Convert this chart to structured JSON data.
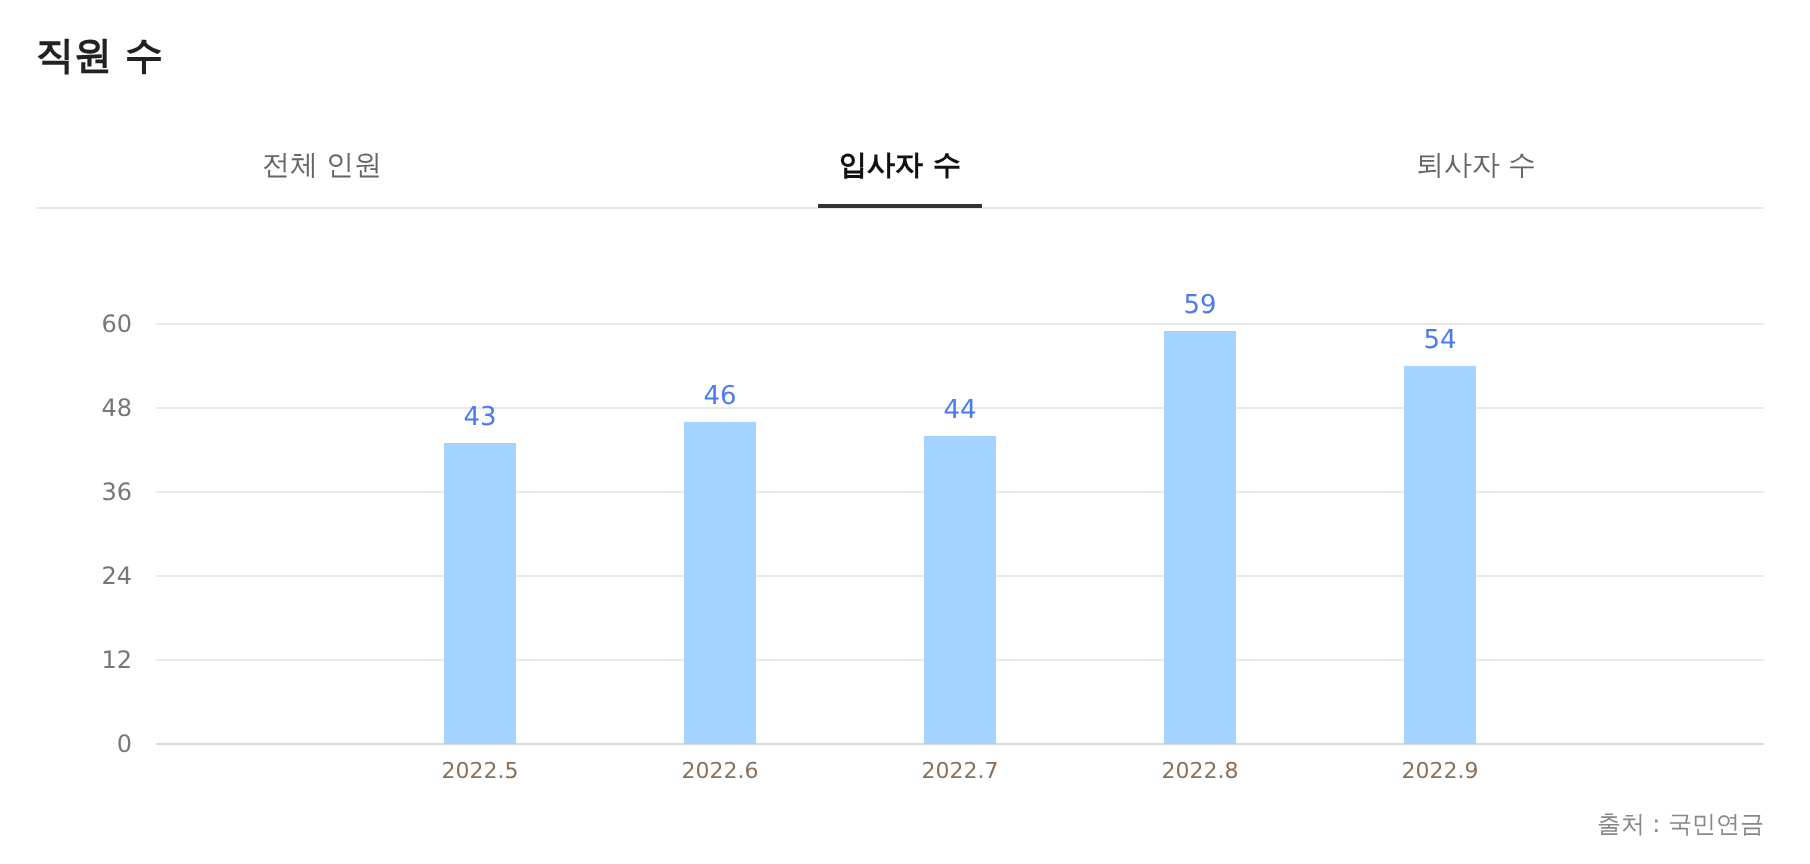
{
  "chart_data": {
    "type": "bar",
    "title": "직원 수",
    "annotations": [
      "전체 인원",
      "입사자 수",
      "퇴사자 수",
      "출처 : 국민연금"
    ],
    "categories": [
      "2022.5",
      "2022.6",
      "2022.7",
      "2022.8",
      "2022.9"
    ],
    "values": [
      43,
      46,
      44,
      59,
      54
    ],
    "color": "#a3d4ff",
    "ylim": [
      0,
      60
    ],
    "yticks": [
      0,
      12,
      24,
      36,
      48,
      60
    ],
    "grid": "y",
    "data_labels": true
  }
}
